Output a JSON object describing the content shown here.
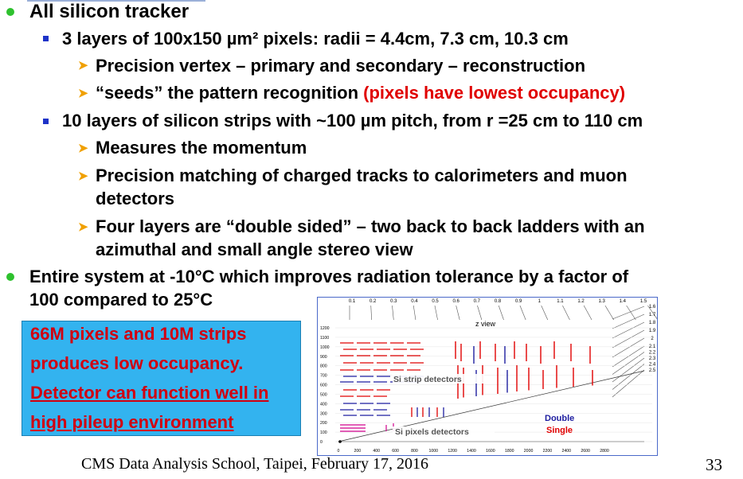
{
  "bullets": {
    "b1": "All silicon tracker",
    "b1_1": "3 layers of 100x150 µm² pixels: radii = 4.4cm, 7.3 cm, 10.3 cm",
    "b1_1_1": "Precision vertex – primary and secondary – reconstruction",
    "b1_1_2_a": "“seeds” the pattern recognition ",
    "b1_1_2_b": "(pixels have lowest occupancy)",
    "b1_2": "10 layers of silicon strips with ~100 µm pitch, from r =25 cm to 110 cm",
    "b1_2_1": "Measures the momentum",
    "b1_2_2_a": "Precision matching of charged tracks to calorimeters and muon",
    "b1_2_2_b": "detectors",
    "b1_2_3_a": "Four layers are “double sided” – two back to back ladders with an",
    "b1_2_3_b": "azimuthal and small angle stereo view",
    "b2_a": "Entire system at -10°C which improves radiation tolerance by a factor of",
    "b2_b": "100 compared to 25°C"
  },
  "callout": {
    "line1": "66M pixels and 10M strips",
    "line2": "produces low occupancy.",
    "line3": "Detector can function well in",
    "line4": "high pileup environment"
  },
  "diagram": {
    "top_eta_labels": [
      "0.1",
      "0.2",
      "0.3",
      "0.4",
      "0.5",
      "0.6",
      "0.7",
      "0.8",
      "0.9",
      "1",
      "1.1",
      "1.2",
      "1.3",
      "1.4",
      "1.5"
    ],
    "right_eta_labels": [
      "1.6",
      "1.7",
      "1.8",
      "1.9",
      "2",
      "2.1",
      "2.2",
      "2.3",
      "2.4",
      "2.5"
    ],
    "y_ticks": [
      "1200",
      "1100",
      "1000",
      "900",
      "800",
      "700",
      "600",
      "500",
      "400",
      "300",
      "200",
      "100",
      "0"
    ],
    "x_ticks": [
      "0",
      "200",
      "400",
      "600",
      "800",
      "1000",
      "1200",
      "1400",
      "1600",
      "1800",
      "2000",
      "2200",
      "2400",
      "2600",
      "2800"
    ],
    "zview_label": "z view",
    "strip_label": "Si strip detectors",
    "pixel_label": "Si pixels detectors",
    "double_label": "Double",
    "single_label": "Single",
    "colors": {
      "single": "#e00000",
      "double": "#1e1ea0",
      "pixel": "#d0008c"
    }
  },
  "footer": "CMS Data Analysis School, Taipei,  February 17, 2016",
  "page_number": "33"
}
